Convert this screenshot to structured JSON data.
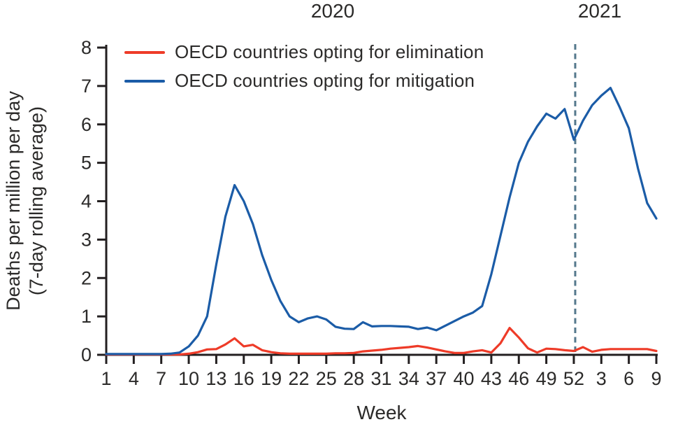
{
  "figure": {
    "background": "#ffffff"
  },
  "colors": {
    "elimination_red": "#ee3b28",
    "mitigation_blue": "#1b5ca7",
    "dashed_divider": "#54788c",
    "axis": "#231f20",
    "text": "#2b2a29"
  },
  "chart_data": {
    "type": "line",
    "title": "",
    "xlabel": "Week",
    "ylabel": "Deaths per million per day (7-day rolling average)",
    "ylabel_line1": "Deaths per million per day",
    "ylabel_line2": "(7-day rolling average)",
    "year_labels": [
      {
        "text": "2020"
      },
      {
        "text": "2021"
      }
    ],
    "x_description": "Weeks 1-52 of 2020 followed by weeks 1-9 of 2021",
    "week_count": 61,
    "ylim": [
      0,
      8
    ],
    "yticks": [
      "0",
      "1",
      "2",
      "3",
      "4",
      "5",
      "6",
      "7",
      "8"
    ],
    "xticks": {
      "indices": [
        0,
        3,
        6,
        9,
        12,
        15,
        18,
        21,
        24,
        27,
        30,
        33,
        36,
        39,
        42,
        45,
        48,
        51,
        54,
        57,
        60
      ],
      "labels": [
        "1",
        "4",
        "7",
        "10",
        "13",
        "16",
        "19",
        "22",
        "25",
        "28",
        "31",
        "34",
        "37",
        "40",
        "43",
        "46",
        "49",
        "52",
        "3",
        "6",
        "9"
      ]
    },
    "grid": false,
    "legend_position": "top-left",
    "dashed_divider": {
      "week_index": 51,
      "color": "#54788c"
    },
    "series": [
      {
        "name": "OECD countries opting for elimination",
        "color": "#ee3b28",
        "values": [
          0.01,
          0.01,
          0.01,
          0.01,
          0.01,
          0.01,
          0.01,
          0.01,
          0.01,
          0.03,
          0.07,
          0.14,
          0.15,
          0.27,
          0.43,
          0.22,
          0.26,
          0.12,
          0.07,
          0.04,
          0.03,
          0.03,
          0.03,
          0.03,
          0.03,
          0.04,
          0.04,
          0.05,
          0.09,
          0.11,
          0.13,
          0.16,
          0.18,
          0.2,
          0.23,
          0.19,
          0.14,
          0.09,
          0.05,
          0.05,
          0.09,
          0.12,
          0.06,
          0.3,
          0.7,
          0.45,
          0.17,
          0.06,
          0.16,
          0.15,
          0.12,
          0.1,
          0.2,
          0.08,
          0.13,
          0.15,
          0.15,
          0.15,
          0.15,
          0.15,
          0.1
        ]
      },
      {
        "name": "OECD countries opting for mitigation",
        "color": "#1b5ca7",
        "values": [
          0.02,
          0.02,
          0.02,
          0.02,
          0.02,
          0.02,
          0.02,
          0.03,
          0.06,
          0.22,
          0.5,
          1.0,
          2.35,
          3.6,
          4.42,
          4.0,
          3.4,
          2.6,
          1.95,
          1.4,
          1.0,
          0.85,
          0.95,
          1.0,
          0.92,
          0.73,
          0.68,
          0.67,
          0.85,
          0.74,
          0.75,
          0.75,
          0.74,
          0.73,
          0.67,
          0.71,
          0.64,
          0.76,
          0.88,
          1.0,
          1.1,
          1.27,
          2.1,
          3.1,
          4.1,
          5.0,
          5.55,
          5.95,
          6.28,
          6.15,
          6.4,
          5.6,
          6.1,
          6.5,
          6.75,
          6.95,
          6.45,
          5.9,
          4.85,
          3.95,
          3.55
        ]
      }
    ]
  }
}
